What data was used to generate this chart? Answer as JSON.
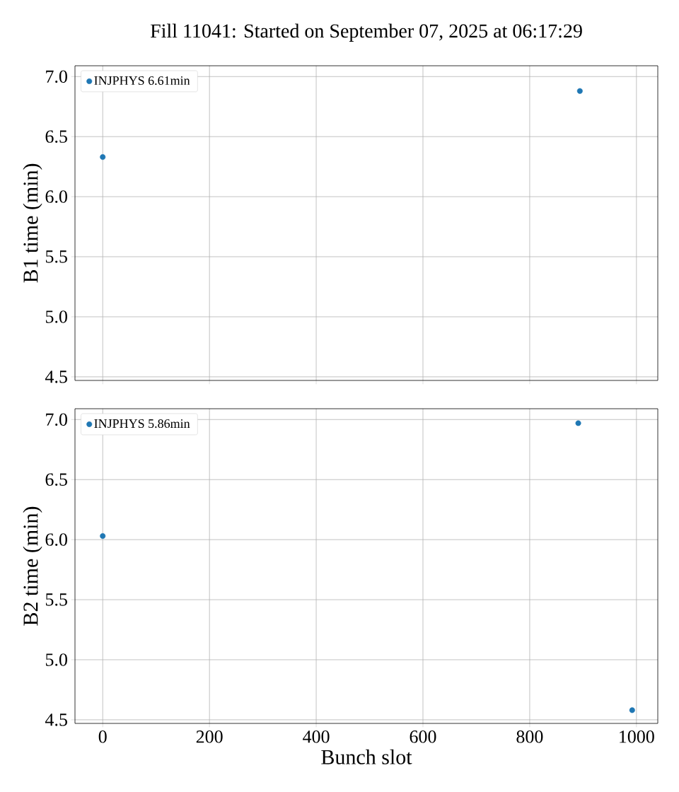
{
  "chart_data": [
    {
      "type": "scatter",
      "title": "Fill 11041: Started on September 07, 2025 at 06:17:29",
      "ylabel": "B1 time (min)",
      "series": [
        {
          "name": "INJPHYS 6.61min",
          "color": "#1f77b4",
          "x": [
            0,
            894
          ],
          "values": [
            6.33,
            6.88
          ]
        }
      ],
      "xlim": [
        -52,
        1040
      ],
      "ylim": [
        4.47,
        7.09
      ],
      "xticks": [
        0,
        200,
        400,
        600,
        800,
        1000
      ],
      "yticks": [
        {
          "value": 4.5,
          "label": "4.5"
        },
        {
          "value": 5.0,
          "label": "5.0"
        },
        {
          "value": 5.5,
          "label": "5.5"
        },
        {
          "value": 6.0,
          "label": "6.0"
        },
        {
          "value": 6.5,
          "label": "6.5"
        },
        {
          "value": 7.0,
          "label": "7.0"
        }
      ],
      "tick_labels": "y",
      "grid": true,
      "legend": "top left",
      "marker": "circle"
    },
    {
      "type": "scatter",
      "xlabel": "Bunch slot",
      "ylabel": "B2 time (min)",
      "series": [
        {
          "name": "INJPHYS 5.86min",
          "color": "#1f77b4",
          "x": [
            0,
            891,
            992
          ],
          "values": [
            6.03,
            6.97,
            4.58
          ]
        }
      ],
      "xlim": [
        -52,
        1040
      ],
      "ylim": [
        4.47,
        7.09
      ],
      "xticks": [
        0,
        200,
        400,
        600,
        800,
        1000
      ],
      "yticks": [
        {
          "value": 4.5,
          "label": "4.5"
        },
        {
          "value": 5.0,
          "label": "5.0"
        },
        {
          "value": 5.5,
          "label": "5.5"
        },
        {
          "value": 6.0,
          "label": "6.0"
        },
        {
          "value": 6.5,
          "label": "6.5"
        },
        {
          "value": 7.0,
          "label": "7.0"
        }
      ],
      "grid": true,
      "legend": "top left",
      "marker": "circle"
    }
  ]
}
